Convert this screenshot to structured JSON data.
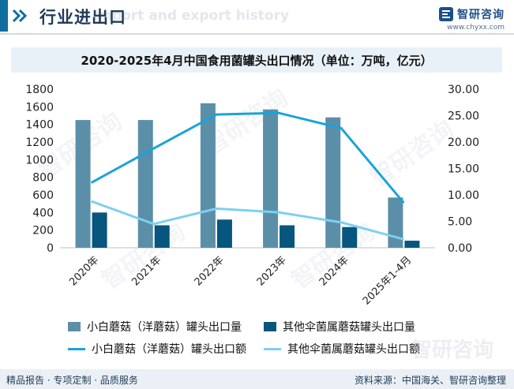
{
  "header": {
    "title": "行业进出口",
    "ghost_text": "Import and export history",
    "brand_name": "智研咨询",
    "brand_url": "www.chyxx.com"
  },
  "watermark_text": "智研咨询",
  "footer": {
    "left": "精品报告 · 专项定制 · 品质服务",
    "right": "资料来源：中国海关、智研咨询整理",
    "ghost": "智研咨询"
  },
  "colors": {
    "bar_primary": "#5b8fa8",
    "bar_secondary": "#06567d",
    "line_primary": "#1aa3d9",
    "line_secondary": "#7dd0f0",
    "accent": "#0f6e9e"
  },
  "chart_data": {
    "type": "bar",
    "title": "2020-2025年4月中国食用菌罐头出口情况（单位：万吨，亿元）",
    "categories": [
      "2020年",
      "2021年",
      "2022年",
      "2023年",
      "2024年",
      "2025年1-4月"
    ],
    "left_axis": {
      "min": 0,
      "max": 1800,
      "ticks": [
        "0",
        "200",
        "400",
        "600",
        "800",
        "1000",
        "1200",
        "1400",
        "1600",
        "1800"
      ]
    },
    "right_axis": {
      "min": 0,
      "max": 30,
      "ticks": [
        "0.00",
        "5.00",
        "10.00",
        "15.00",
        "20.00",
        "25.00",
        "30.00"
      ]
    },
    "series": [
      {
        "name": "小白蘑菇（洋蘑菇）罐头出口量",
        "kind": "bar",
        "axis": "left",
        "values": [
          1450,
          1450,
          1640,
          1570,
          1480,
          570
        ]
      },
      {
        "name": "其他伞菌属蘑菇罐头出口量",
        "kind": "bar",
        "axis": "left",
        "values": [
          400,
          255,
          320,
          255,
          235,
          80
        ]
      },
      {
        "name": "小白蘑菇（洋蘑菇）罐头出口额",
        "kind": "line",
        "axis": "right",
        "values": [
          12.3,
          18.8,
          25.2,
          25.5,
          22.6,
          8.5
        ]
      },
      {
        "name": "其他伞菌属蘑菇罐头出口额",
        "kind": "line",
        "axis": "right",
        "values": [
          8.8,
          4.5,
          7.4,
          6.7,
          4.8,
          1.6
        ]
      }
    ],
    "grid": false,
    "legend_position": "bottom"
  }
}
